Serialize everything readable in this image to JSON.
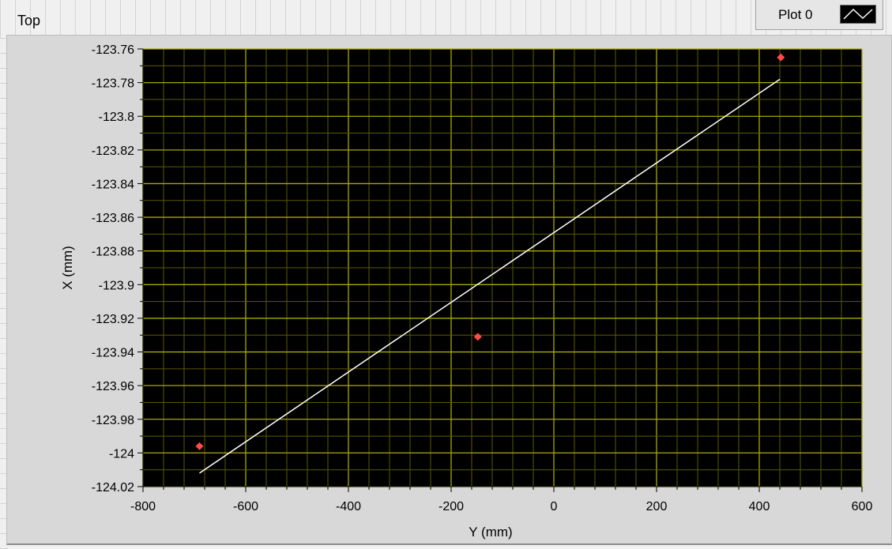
{
  "graph": {
    "title": "Top",
    "legend": {
      "label": "Plot 0",
      "icon": "line-plot-icon"
    }
  },
  "colors": {
    "plot_background": "#000000",
    "grid_major": "#a8a800",
    "grid_minor": "#5a5a00",
    "fit_line": "#ffffff",
    "points": "#ff4a4a"
  },
  "chart_data": {
    "type": "scatter",
    "xlabel": "Y (mm)",
    "ylabel": "X (mm)",
    "xlim": [
      -800,
      600
    ],
    "ylim": [
      -124.02,
      -123.76
    ],
    "xticks": [
      "-800",
      "-600",
      "-400",
      "-200",
      "0",
      "200",
      "400",
      "600"
    ],
    "yticks": [
      "-123.76",
      "-123.78",
      "-123.8",
      "-123.82",
      "-123.84",
      "-123.86",
      "-123.88",
      "-123.9",
      "-123.92",
      "-123.94",
      "-123.96",
      "-123.98",
      "-124",
      "-124.02"
    ],
    "grid": true,
    "series": [
      {
        "type": "scatter",
        "x": [
          -690,
          -148,
          442
        ],
        "y": [
          -123.996,
          -123.931,
          -123.765
        ]
      },
      {
        "type": "line",
        "x": [
          -690,
          440
        ],
        "y": [
          -124.012,
          -123.778
        ]
      }
    ]
  }
}
